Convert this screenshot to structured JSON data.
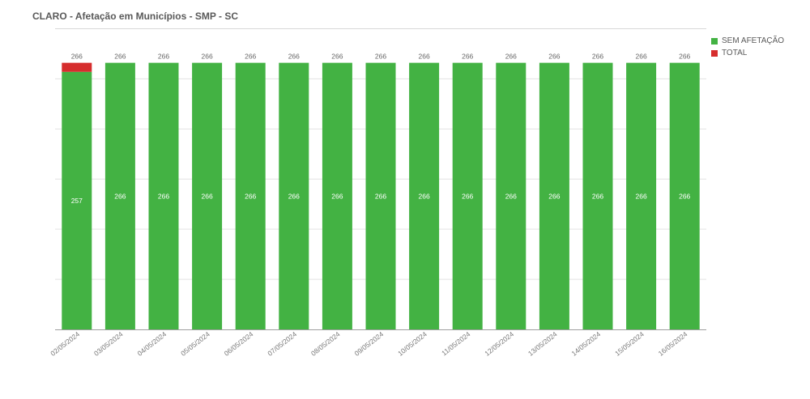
{
  "chart_data": {
    "type": "bar",
    "stacked": true,
    "title": "CLARO - Afetação em Municípios - SMP - SC",
    "categories": [
      "02/05/2024",
      "03/05/2024",
      "04/05/2024",
      "05/05/2024",
      "06/05/2024",
      "07/05/2024",
      "08/05/2024",
      "09/05/2024",
      "10/05/2024",
      "11/05/2024",
      "12/05/2024",
      "13/05/2024",
      "14/05/2024",
      "15/05/2024",
      "16/05/2024"
    ],
    "series": [
      {
        "name": "SEM AFETAÇÃO",
        "color": "#43b243",
        "values": [
          257,
          266,
          266,
          266,
          266,
          266,
          266,
          266,
          266,
          266,
          266,
          266,
          266,
          266,
          266
        ]
      },
      {
        "name": "TOTAL",
        "color": "#d62d2d",
        "values": [
          9,
          0,
          0,
          0,
          0,
          0,
          0,
          0,
          0,
          0,
          0,
          0,
          0,
          0,
          0
        ]
      }
    ],
    "totals": [
      "266",
      "266",
      "266",
      "266",
      "266",
      "266",
      "266",
      "266",
      "266",
      "266",
      "266",
      "266",
      "266",
      "266",
      "266"
    ],
    "inner_labels": [
      "257",
      "266",
      "266",
      "266",
      "266",
      "266",
      "266",
      "266",
      "266",
      "266",
      "266",
      "266",
      "266",
      "266",
      "266"
    ],
    "ylim": [
      0,
      300
    ],
    "legend_position": "top-right",
    "grid": true
  }
}
